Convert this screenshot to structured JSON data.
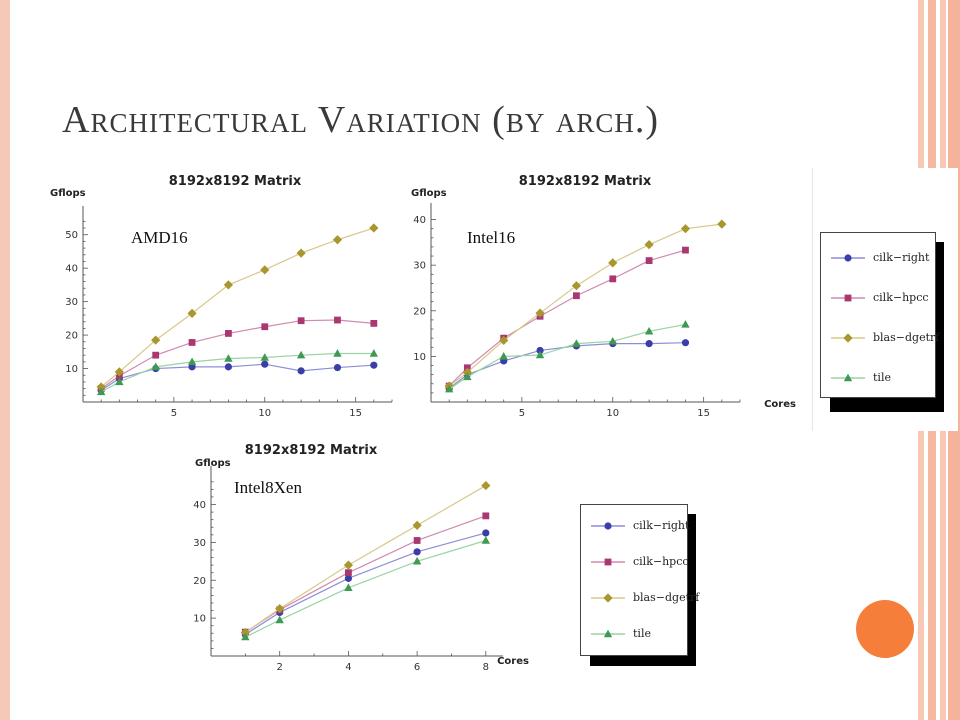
{
  "slide": {
    "title": "Architectural Variation (by arch.)"
  },
  "labels": {
    "amd16": "AMD16",
    "intel16": "Intel16",
    "intel8xen": "Intel8Xen"
  },
  "colors": {
    "cilk-right": "#3a3ea8",
    "cilk-hpcc": "#a8386f",
    "blas-dgetrf": "#a8962f",
    "tile": "#3e9a52",
    "cilk-right-line": "#8c8fd8",
    "cilk-hpcc-line": "#d28ab0",
    "blas-dgetrf-line": "#d8c88a",
    "tile-line": "#98d4a4"
  },
  "legend": {
    "items": [
      "cilk−right",
      "cilk−hpcc",
      "blas−dgetrf",
      "tile"
    ]
  },
  "chart_data": [
    {
      "type": "line",
      "title": "8192x8192 Matrix",
      "ylabel": "Gflops",
      "xlabel": "",
      "xlim": [
        0,
        17
      ],
      "ylim": [
        0,
        55
      ],
      "xticks": [
        5,
        10,
        15
      ],
      "yticks": [
        10,
        20,
        30,
        40,
        50
      ],
      "series": [
        {
          "name": "cilk−right",
          "key": "cilk-right",
          "marker": "circle",
          "x": [
            1,
            2,
            4,
            6,
            8,
            10,
            12,
            14,
            16
          ],
          "y": [
            3.5,
            7,
            10,
            10.5,
            10.5,
            11.3,
            9.3,
            10.3,
            11
          ]
        },
        {
          "name": "cilk−hpcc",
          "key": "cilk-hpcc",
          "marker": "square",
          "x": [
            1,
            2,
            4,
            6,
            8,
            10,
            12,
            14,
            16
          ],
          "y": [
            4,
            7.8,
            14,
            17.8,
            20.5,
            22.5,
            24.3,
            24.5,
            23.5
          ]
        },
        {
          "name": "blas−dgetrf",
          "key": "blas-dgetrf",
          "marker": "diamond",
          "x": [
            1,
            2,
            4,
            6,
            8,
            10,
            12,
            14,
            16
          ],
          "y": [
            4.5,
            9,
            18.5,
            26.5,
            35,
            39.5,
            44.5,
            48.5,
            52
          ]
        },
        {
          "name": "tile",
          "key": "tile",
          "marker": "triangle",
          "x": [
            1,
            2,
            4,
            6,
            8,
            10,
            12,
            14,
            16
          ],
          "y": [
            3,
            6,
            10.5,
            12,
            13,
            13.3,
            14,
            14.5,
            14.5
          ]
        }
      ]
    },
    {
      "type": "line",
      "title": "8192x8192 Matrix",
      "ylabel": "Gflops",
      "xlabel": "Cores",
      "xlim": [
        0,
        17
      ],
      "ylim": [
        0,
        41
      ],
      "xticks": [
        5,
        10,
        15
      ],
      "yticks": [
        10,
        20,
        30,
        40
      ],
      "series": [
        {
          "name": "cilk−right",
          "key": "cilk-right",
          "marker": "circle",
          "x": [
            1,
            2,
            4,
            6,
            8,
            10,
            12,
            14
          ],
          "y": [
            3,
            6,
            9,
            11.3,
            12.3,
            12.8,
            12.8,
            13
          ]
        },
        {
          "name": "cilk−hpcc",
          "key": "cilk-hpcc",
          "marker": "square",
          "x": [
            1,
            2,
            4,
            6,
            8,
            10,
            12,
            14
          ],
          "y": [
            3.5,
            7.5,
            14,
            18.8,
            23.3,
            27,
            31,
            33.3
          ]
        },
        {
          "name": "blas−dgetrf",
          "key": "blas-dgetrf",
          "marker": "diamond",
          "x": [
            1,
            2,
            4,
            6,
            8,
            10,
            12,
            14,
            16
          ],
          "y": [
            3.5,
            6.5,
            13.5,
            19.5,
            25.5,
            30.5,
            34.5,
            38,
            39
          ]
        },
        {
          "name": "tile",
          "key": "tile",
          "marker": "triangle",
          "x": [
            1,
            2,
            4,
            6,
            8,
            10,
            12,
            14
          ],
          "y": [
            2.8,
            5.5,
            10,
            10.3,
            12.8,
            13.3,
            15.5,
            17
          ]
        }
      ]
    },
    {
      "type": "line",
      "title": "8192x8192 Matrix",
      "ylabel": "Gflops",
      "xlabel": "Cores",
      "xlim": [
        0,
        8.5
      ],
      "ylim": [
        0,
        47
      ],
      "xticks": [
        2,
        4,
        6,
        8
      ],
      "yticks": [
        10,
        20,
        30,
        40
      ],
      "series": [
        {
          "name": "cilk−right",
          "key": "cilk-right",
          "marker": "circle",
          "x": [
            1,
            2,
            4,
            6,
            8
          ],
          "y": [
            5.7,
            11.5,
            20.5,
            27.5,
            32.5
          ]
        },
        {
          "name": "cilk−hpcc",
          "key": "cilk-hpcc",
          "marker": "square",
          "x": [
            1,
            2,
            4,
            6,
            8
          ],
          "y": [
            6.3,
            12.2,
            22,
            30.5,
            37
          ]
        },
        {
          "name": "blas−dgetrf",
          "key": "blas-dgetrf",
          "marker": "diamond",
          "x": [
            1,
            2,
            4,
            6,
            8
          ],
          "y": [
            6.2,
            12.5,
            24,
            34.5,
            45
          ]
        },
        {
          "name": "tile",
          "key": "tile",
          "marker": "triangle",
          "x": [
            1,
            2,
            4,
            6,
            8
          ],
          "y": [
            5,
            9.5,
            18,
            25,
            30.5
          ]
        }
      ]
    }
  ]
}
